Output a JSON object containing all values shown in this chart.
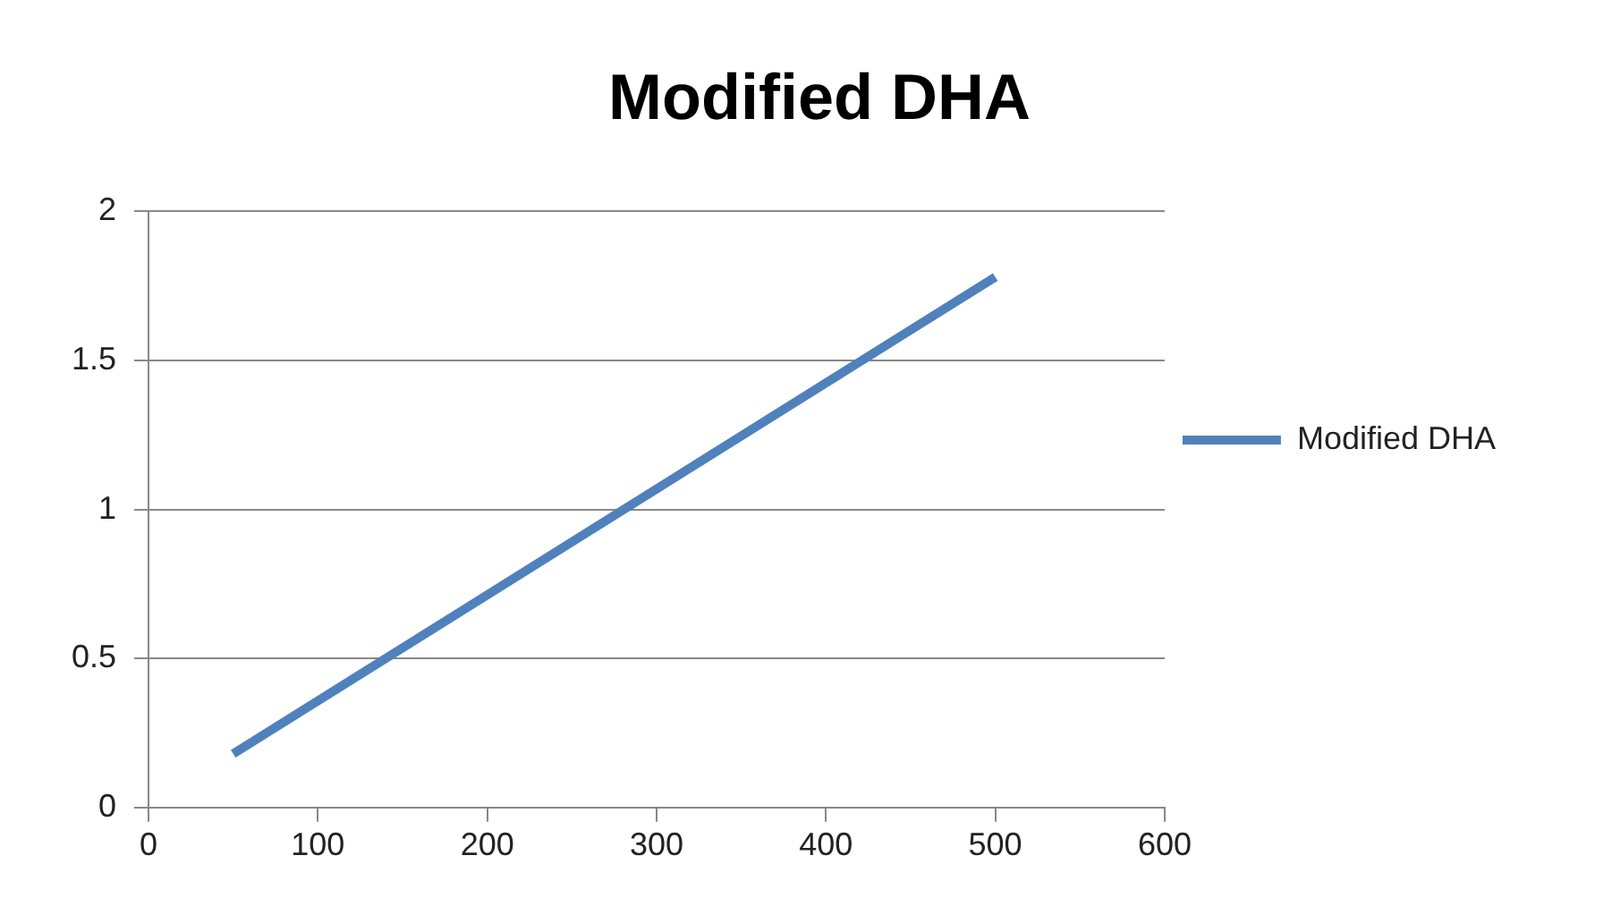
{
  "chart_data": {
    "type": "line",
    "title": "Modified DHA",
    "x": [
      50,
      500
    ],
    "series": [
      {
        "name": "Modified DHA",
        "color": "#4f81bd",
        "values": [
          0.18,
          1.78
        ]
      }
    ],
    "xlim": [
      0,
      600
    ],
    "xticks": [
      0,
      100,
      200,
      300,
      400,
      500,
      600
    ],
    "ylim": [
      0,
      2
    ],
    "yticks": [
      0,
      0.5,
      1,
      1.5,
      2
    ],
    "grid": "y",
    "legend": "right",
    "marker": "none",
    "line_style": "solid"
  }
}
